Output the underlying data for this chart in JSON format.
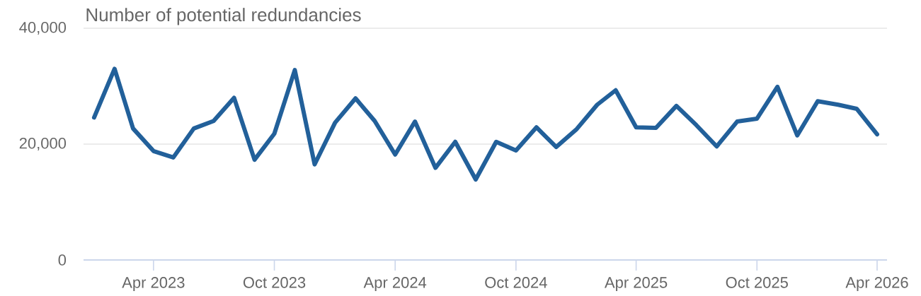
{
  "chart_data": {
    "type": "line",
    "title": "Number of potential redundancies",
    "x": [
      "2023-01",
      "2023-02",
      "2023-03",
      "2023-04",
      "2023-05",
      "2023-06",
      "2023-07",
      "2023-08",
      "2023-09",
      "2023-10",
      "2023-11",
      "2023-12",
      "2024-01",
      "2024-02",
      "2024-03",
      "2024-04",
      "2024-05",
      "2024-06",
      "2024-07",
      "2024-08",
      "2024-09",
      "2024-10",
      "2024-11",
      "2024-12",
      "2025-01",
      "2025-02",
      "2025-03",
      "2025-04",
      "2025-05",
      "2025-06",
      "2025-07",
      "2025-08",
      "2025-09",
      "2025-10",
      "2025-11",
      "2025-12",
      "2026-01",
      "2026-02",
      "2026-03",
      "2026-04"
    ],
    "values": [
      24600,
      33000,
      22700,
      18800,
      17700,
      22700,
      24000,
      28000,
      17300,
      21800,
      32800,
      16500,
      23700,
      27900,
      24000,
      18200,
      23900,
      15900,
      20400,
      13900,
      20400,
      18900,
      22900,
      19500,
      22600,
      26800,
      29300,
      22900,
      22800,
      26600,
      23300,
      19600,
      23900,
      24400,
      29900,
      21500,
      27400,
      26800,
      26100,
      21700
    ],
    "color": "#22609a",
    "xlim": [
      "2022-12-16",
      "2026-04-16"
    ],
    "xticks": [
      {
        "value": "2023-04",
        "label": "Apr 2023"
      },
      {
        "value": "2023-10",
        "label": "Oct 2023"
      },
      {
        "value": "2024-04",
        "label": "Apr 2024"
      },
      {
        "value": "2024-10",
        "label": "Oct 2024"
      },
      {
        "value": "2025-04",
        "label": "Apr 2025"
      },
      {
        "value": "2025-10",
        "label": "Oct 2025"
      },
      {
        "value": "2026-04",
        "label": "Apr 2026"
      }
    ],
    "ylim": [
      0,
      40000
    ],
    "yticks": [
      0,
      {
        "value": 20000,
        "label": "20,000"
      },
      {
        "value": 40000,
        "label": "40,000"
      }
    ],
    "grid": "y"
  }
}
